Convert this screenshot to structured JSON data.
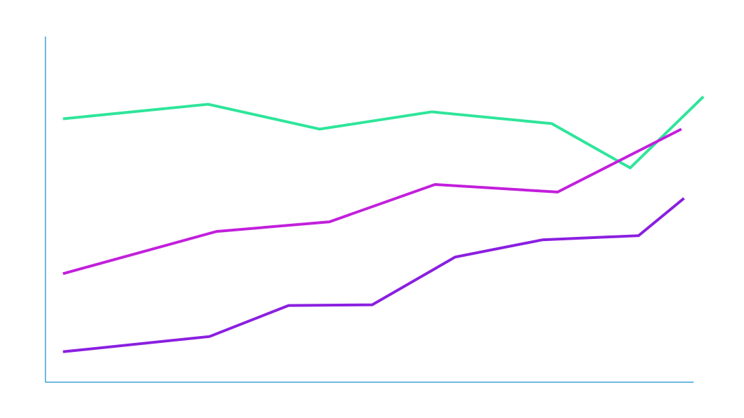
{
  "chart_data": {
    "type": "line",
    "title": "",
    "xlabel": "",
    "ylabel": "",
    "axis_color": "#3aa0d8",
    "grid": false,
    "legend": "none",
    "xlim": [
      0,
      100
    ],
    "ylim": [
      0,
      100
    ],
    "series": [
      {
        "color": "#2ee59a",
        "points": [
          [
            2.7,
            76.2
          ],
          [
            25.1,
            80.4
          ],
          [
            42.3,
            73.2
          ],
          [
            59.6,
            78.2
          ],
          [
            78.1,
            74.8
          ],
          [
            90.2,
            62.0
          ],
          [
            101.5,
            82.6
          ]
        ]
      },
      {
        "color": "#c21fdc",
        "points": [
          [
            2.7,
            31.4
          ],
          [
            26.4,
            43.6
          ],
          [
            43.8,
            46.4
          ],
          [
            60.1,
            57.2
          ],
          [
            79.0,
            55.0
          ],
          [
            98.1,
            73.2
          ]
        ]
      },
      {
        "color": "#8a1fe0",
        "points": [
          [
            2.7,
            8.8
          ],
          [
            25.3,
            13.2
          ],
          [
            37.5,
            22.2
          ],
          [
            50.4,
            22.4
          ],
          [
            63.2,
            36.2
          ],
          [
            76.7,
            41.2
          ],
          [
            91.5,
            42.4
          ],
          [
            98.5,
            53.2
          ]
        ]
      }
    ]
  }
}
